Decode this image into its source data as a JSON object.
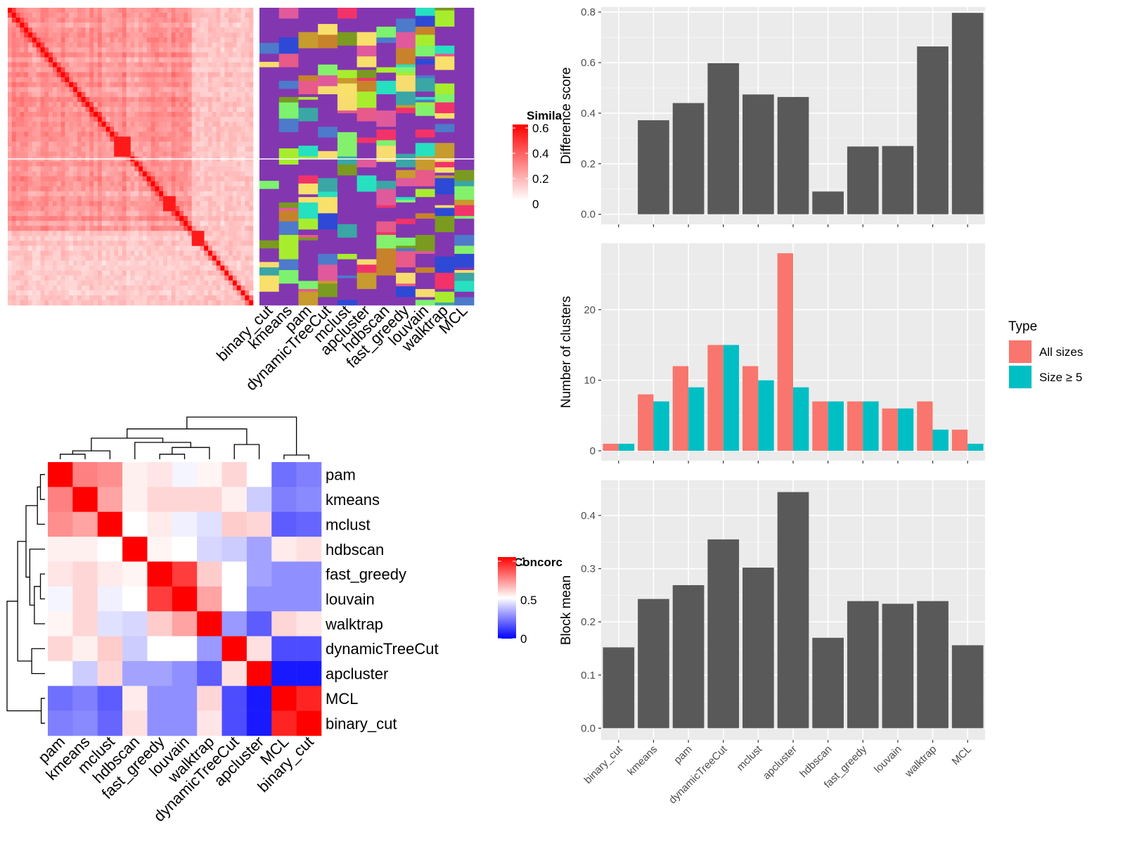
{
  "colors": {
    "bar_fill": "#595959",
    "panel_bg": "#ebebeb",
    "grid": "#ffffff",
    "all_sizes": "#f8766d",
    "size_ge5": "#00bfc4",
    "similarity_high": "#ff0000",
    "concordance_low": "#0000ff"
  },
  "similarity_heatmap": {
    "legend_title": "Simila",
    "legend_ticks": [
      "0.6",
      "0.4",
      "0.2",
      "0"
    ],
    "methods": [
      "binary_cut",
      "kmeans",
      "pam",
      "dynamicTreeCut",
      "mclust",
      "apcluster",
      "hdbscan",
      "fast_greedy",
      "louvain",
      "walktrap",
      "MCL"
    ]
  },
  "concordance_heatmap": {
    "legend_title": "Concorc",
    "legend_ticks": [
      "1",
      "0.5",
      "0"
    ],
    "order": [
      "pam",
      "kmeans",
      "mclust",
      "hdbscan",
      "fast_greedy",
      "louvain",
      "walktrap",
      "dynamicTreeCut",
      "apcluster",
      "MCL",
      "binary_cut"
    ],
    "matrix": [
      [
        1.0,
        0.75,
        0.72,
        0.53,
        0.55,
        0.48,
        0.52,
        0.58,
        0.5,
        0.22,
        0.25
      ],
      [
        0.75,
        1.0,
        0.68,
        0.53,
        0.58,
        0.58,
        0.58,
        0.53,
        0.4,
        0.25,
        0.27
      ],
      [
        0.72,
        0.68,
        1.0,
        0.5,
        0.54,
        0.47,
        0.44,
        0.6,
        0.58,
        0.18,
        0.2
      ],
      [
        0.53,
        0.53,
        0.5,
        1.0,
        0.52,
        0.5,
        0.42,
        0.4,
        0.32,
        0.54,
        0.56
      ],
      [
        0.55,
        0.58,
        0.54,
        0.52,
        1.0,
        0.88,
        0.6,
        0.5,
        0.32,
        0.28,
        0.28
      ],
      [
        0.48,
        0.58,
        0.47,
        0.5,
        0.88,
        1.0,
        0.68,
        0.5,
        0.28,
        0.28,
        0.28
      ],
      [
        0.52,
        0.58,
        0.44,
        0.42,
        0.6,
        0.68,
        1.0,
        0.3,
        0.18,
        0.58,
        0.55
      ],
      [
        0.58,
        0.53,
        0.6,
        0.4,
        0.5,
        0.5,
        0.3,
        1.0,
        0.56,
        0.15,
        0.15
      ],
      [
        0.5,
        0.4,
        0.58,
        0.32,
        0.32,
        0.28,
        0.18,
        0.56,
        1.0,
        0.05,
        0.05
      ],
      [
        0.22,
        0.25,
        0.18,
        0.54,
        0.28,
        0.28,
        0.58,
        0.15,
        0.05,
        1.0,
        0.93
      ],
      [
        0.25,
        0.27,
        0.2,
        0.56,
        0.28,
        0.28,
        0.55,
        0.15,
        0.05,
        0.93,
        1.0
      ]
    ]
  },
  "chart_data": [
    {
      "type": "bar",
      "categories": [
        "binary_cut",
        "kmeans",
        "pam",
        "dynamicTreeCut",
        "mclust",
        "apcluster",
        "hdbscan",
        "fast_greedy",
        "louvain",
        "walktrap",
        "MCL"
      ],
      "values": [
        0,
        0.372,
        0.44,
        0.598,
        0.474,
        0.464,
        0.09,
        0.268,
        0.27,
        0.664,
        0.797
      ],
      "ylabel": "Difference score",
      "xlabel": "",
      "ylim": [
        -0.04,
        0.82
      ],
      "yticks": [
        "0.0",
        "0.2",
        "0.4",
        "0.6",
        "0.8"
      ],
      "grid": true
    },
    {
      "type": "bar",
      "categories": [
        "binary_cut",
        "kmeans",
        "pam",
        "dynamicTreeCut",
        "mclust",
        "apcluster",
        "hdbscan",
        "fast_greedy",
        "louvain",
        "walktrap",
        "MCL"
      ],
      "series": [
        {
          "name": "All sizes",
          "values": [
            1,
            8,
            12,
            15,
            12,
            28,
            7,
            7,
            6,
            7,
            3
          ]
        },
        {
          "name": "Size ≥ 5",
          "values": [
            1,
            7,
            9,
            15,
            10,
            9,
            7,
            7,
            6,
            3,
            1
          ]
        }
      ],
      "ylabel": "Number of clusters",
      "xlabel": "",
      "ylim": [
        -1.4,
        29.4
      ],
      "yticks": [
        "0",
        "10",
        "20"
      ],
      "legend_title": "Type",
      "legend_position": "right",
      "grid": true
    },
    {
      "type": "bar",
      "categories": [
        "binary_cut",
        "kmeans",
        "pam",
        "dynamicTreeCut",
        "mclust",
        "apcluster",
        "hdbscan",
        "fast_greedy",
        "louvain",
        "walktrap",
        "MCL"
      ],
      "values": [
        0.152,
        0.243,
        0.269,
        0.355,
        0.302,
        0.444,
        0.17,
        0.239,
        0.234,
        0.239,
        0.156
      ],
      "ylabel": "Block mean",
      "xlabel": "",
      "ylim": [
        -0.022,
        0.466
      ],
      "yticks": [
        "0.0",
        "0.1",
        "0.2",
        "0.3",
        "0.4"
      ],
      "grid": true
    }
  ]
}
